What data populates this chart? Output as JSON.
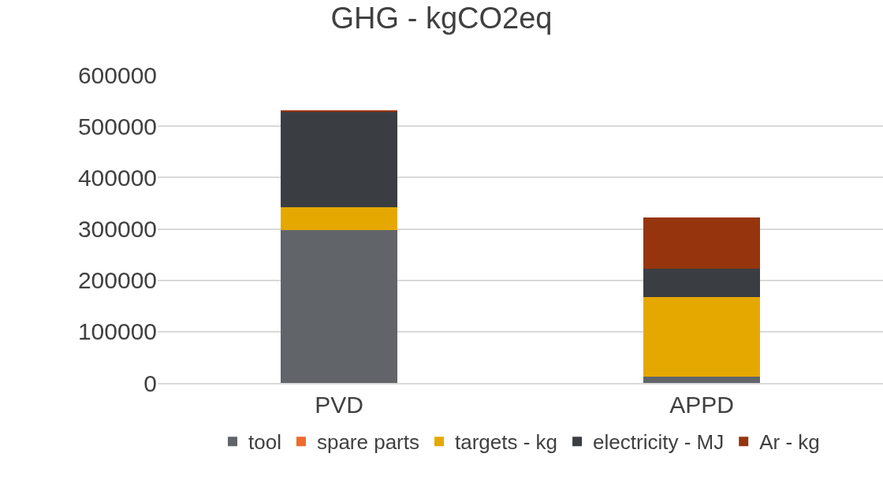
{
  "chart_data": {
    "type": "bar",
    "title": "GHG - kgCO2eq",
    "categories": [
      "PVD",
      "APPD"
    ],
    "stacked": true,
    "series": [
      {
        "name": "tool",
        "color": "#61656a",
        "values": [
          298000,
          12000
        ]
      },
      {
        "name": "spare parts",
        "color": "#ee6a2d",
        "values": [
          0,
          0
        ]
      },
      {
        "name": "targets - kg",
        "color": "#e5a800",
        "values": [
          44000,
          156000
        ]
      },
      {
        "name": "electricity - MJ",
        "color": "#3a3e42",
        "values": [
          187000,
          54000
        ]
      },
      {
        "name": "Ar - kg",
        "color": "#96350d",
        "values": [
          2000,
          100000
        ]
      }
    ],
    "ylim": [
      0,
      600000
    ],
    "yticks": [
      0,
      100000,
      200000,
      300000,
      400000,
      500000,
      600000
    ],
    "grid": "y",
    "legend": "bottom"
  }
}
